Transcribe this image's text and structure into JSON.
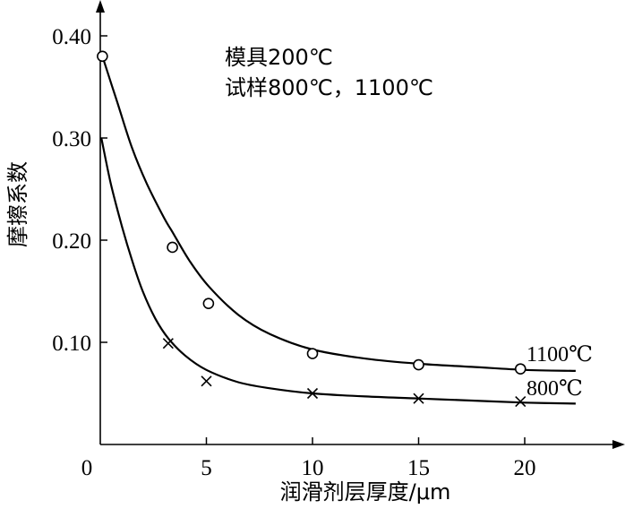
{
  "chart_data": {
    "type": "line",
    "title": "",
    "xlabel": "润滑剂层厚度/μm",
    "ylabel": "摩擦系数",
    "xlim": [
      0,
      23.5
    ],
    "ylim": [
      0,
      0.4
    ],
    "x_ticks": [
      "0",
      "5",
      "10",
      "15",
      "20"
    ],
    "y_ticks": [
      "0.10",
      "0.20",
      "0.30",
      "0.40"
    ],
    "grid": false,
    "annotations": [
      "模具200℃",
      "试样800℃，1100℃"
    ],
    "series": [
      {
        "name": "1100℃",
        "marker": "circle",
        "points": [
          [
            0.1,
            0.38
          ],
          [
            3.4,
            0.193
          ],
          [
            5.1,
            0.138
          ],
          [
            10,
            0.089
          ],
          [
            15,
            0.078
          ],
          [
            19.8,
            0.074
          ]
        ],
        "curve": [
          [
            0.1,
            0.38
          ],
          [
            0.8,
            0.335
          ],
          [
            1.5,
            0.29
          ],
          [
            2.2,
            0.255
          ],
          [
            3.0,
            0.222
          ],
          [
            3.4,
            0.208
          ],
          [
            4.2,
            0.18
          ],
          [
            5.1,
            0.155
          ],
          [
            6.5,
            0.127
          ],
          [
            8.0,
            0.108
          ],
          [
            10,
            0.093
          ],
          [
            12.5,
            0.084
          ],
          [
            15,
            0.079
          ],
          [
            17.5,
            0.076
          ],
          [
            20,
            0.073
          ],
          [
            22.4,
            0.072
          ]
        ]
      },
      {
        "name": "800℃",
        "marker": "cross",
        "points": [
          [
            3.2,
            0.099
          ],
          [
            5.0,
            0.062
          ],
          [
            10,
            0.05
          ],
          [
            15,
            0.045
          ],
          [
            19.8,
            0.042
          ]
        ],
        "curve": [
          [
            0.05,
            0.3
          ],
          [
            0.5,
            0.255
          ],
          [
            1.0,
            0.215
          ],
          [
            1.5,
            0.18
          ],
          [
            2.0,
            0.15
          ],
          [
            2.6,
            0.123
          ],
          [
            3.2,
            0.104
          ],
          [
            4.0,
            0.087
          ],
          [
            5.0,
            0.073
          ],
          [
            6.5,
            0.061
          ],
          [
            8.0,
            0.055
          ],
          [
            10,
            0.05
          ],
          [
            12.5,
            0.047
          ],
          [
            15,
            0.045
          ],
          [
            17.5,
            0.043
          ],
          [
            20,
            0.041
          ],
          [
            22.4,
            0.04
          ]
        ]
      }
    ]
  }
}
